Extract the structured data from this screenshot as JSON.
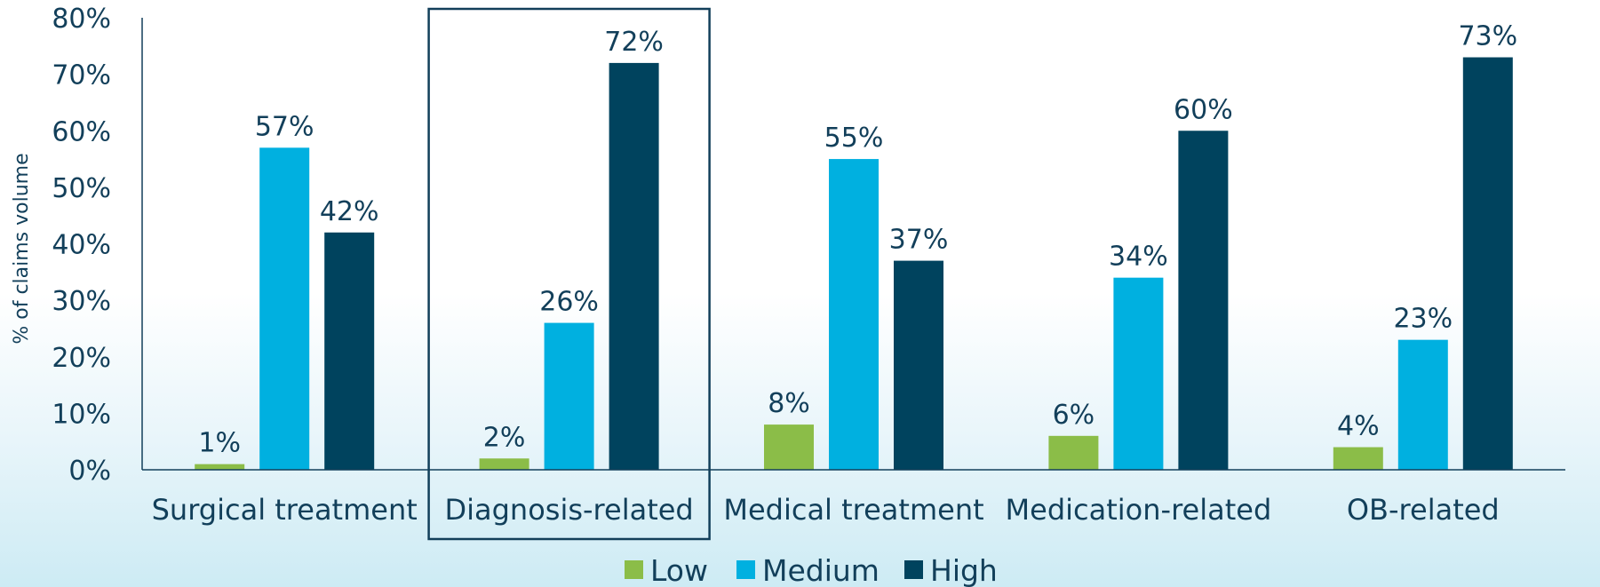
{
  "chart_data": {
    "type": "bar",
    "categories": [
      "Surgical treatment",
      "Diagnosis-related",
      "Medical treatment",
      "Medication-related",
      "OB-related"
    ],
    "series": [
      {
        "name": "Low",
        "values": [
          1,
          2,
          8,
          6,
          4
        ],
        "labels": [
          "1%",
          "2%",
          "8%",
          "6%",
          "4%"
        ],
        "color": "#8bbd48"
      },
      {
        "name": "Medium",
        "values": [
          57,
          26,
          55,
          34,
          23
        ],
        "labels": [
          "57%",
          "26%",
          "55%",
          "34%",
          "23%"
        ],
        "color": "#00b0e0"
      },
      {
        "name": "High",
        "values": [
          42,
          72,
          37,
          60,
          73
        ],
        "labels": [
          "42%",
          "72%",
          "37%",
          "60%",
          "73%"
        ],
        "color": "#00435e"
      }
    ],
    "ylabel": "% of claims volume",
    "ylim": [
      0,
      80
    ],
    "yticks": [
      "0%",
      "10%",
      "20%",
      "30%",
      "40%",
      "50%",
      "60%",
      "70%",
      "80%"
    ],
    "highlighted_category": "Diagnosis-related",
    "legend_position": "bottom",
    "grid": false,
    "text_color": "#123f5a",
    "axis_color": "#123f5a"
  }
}
